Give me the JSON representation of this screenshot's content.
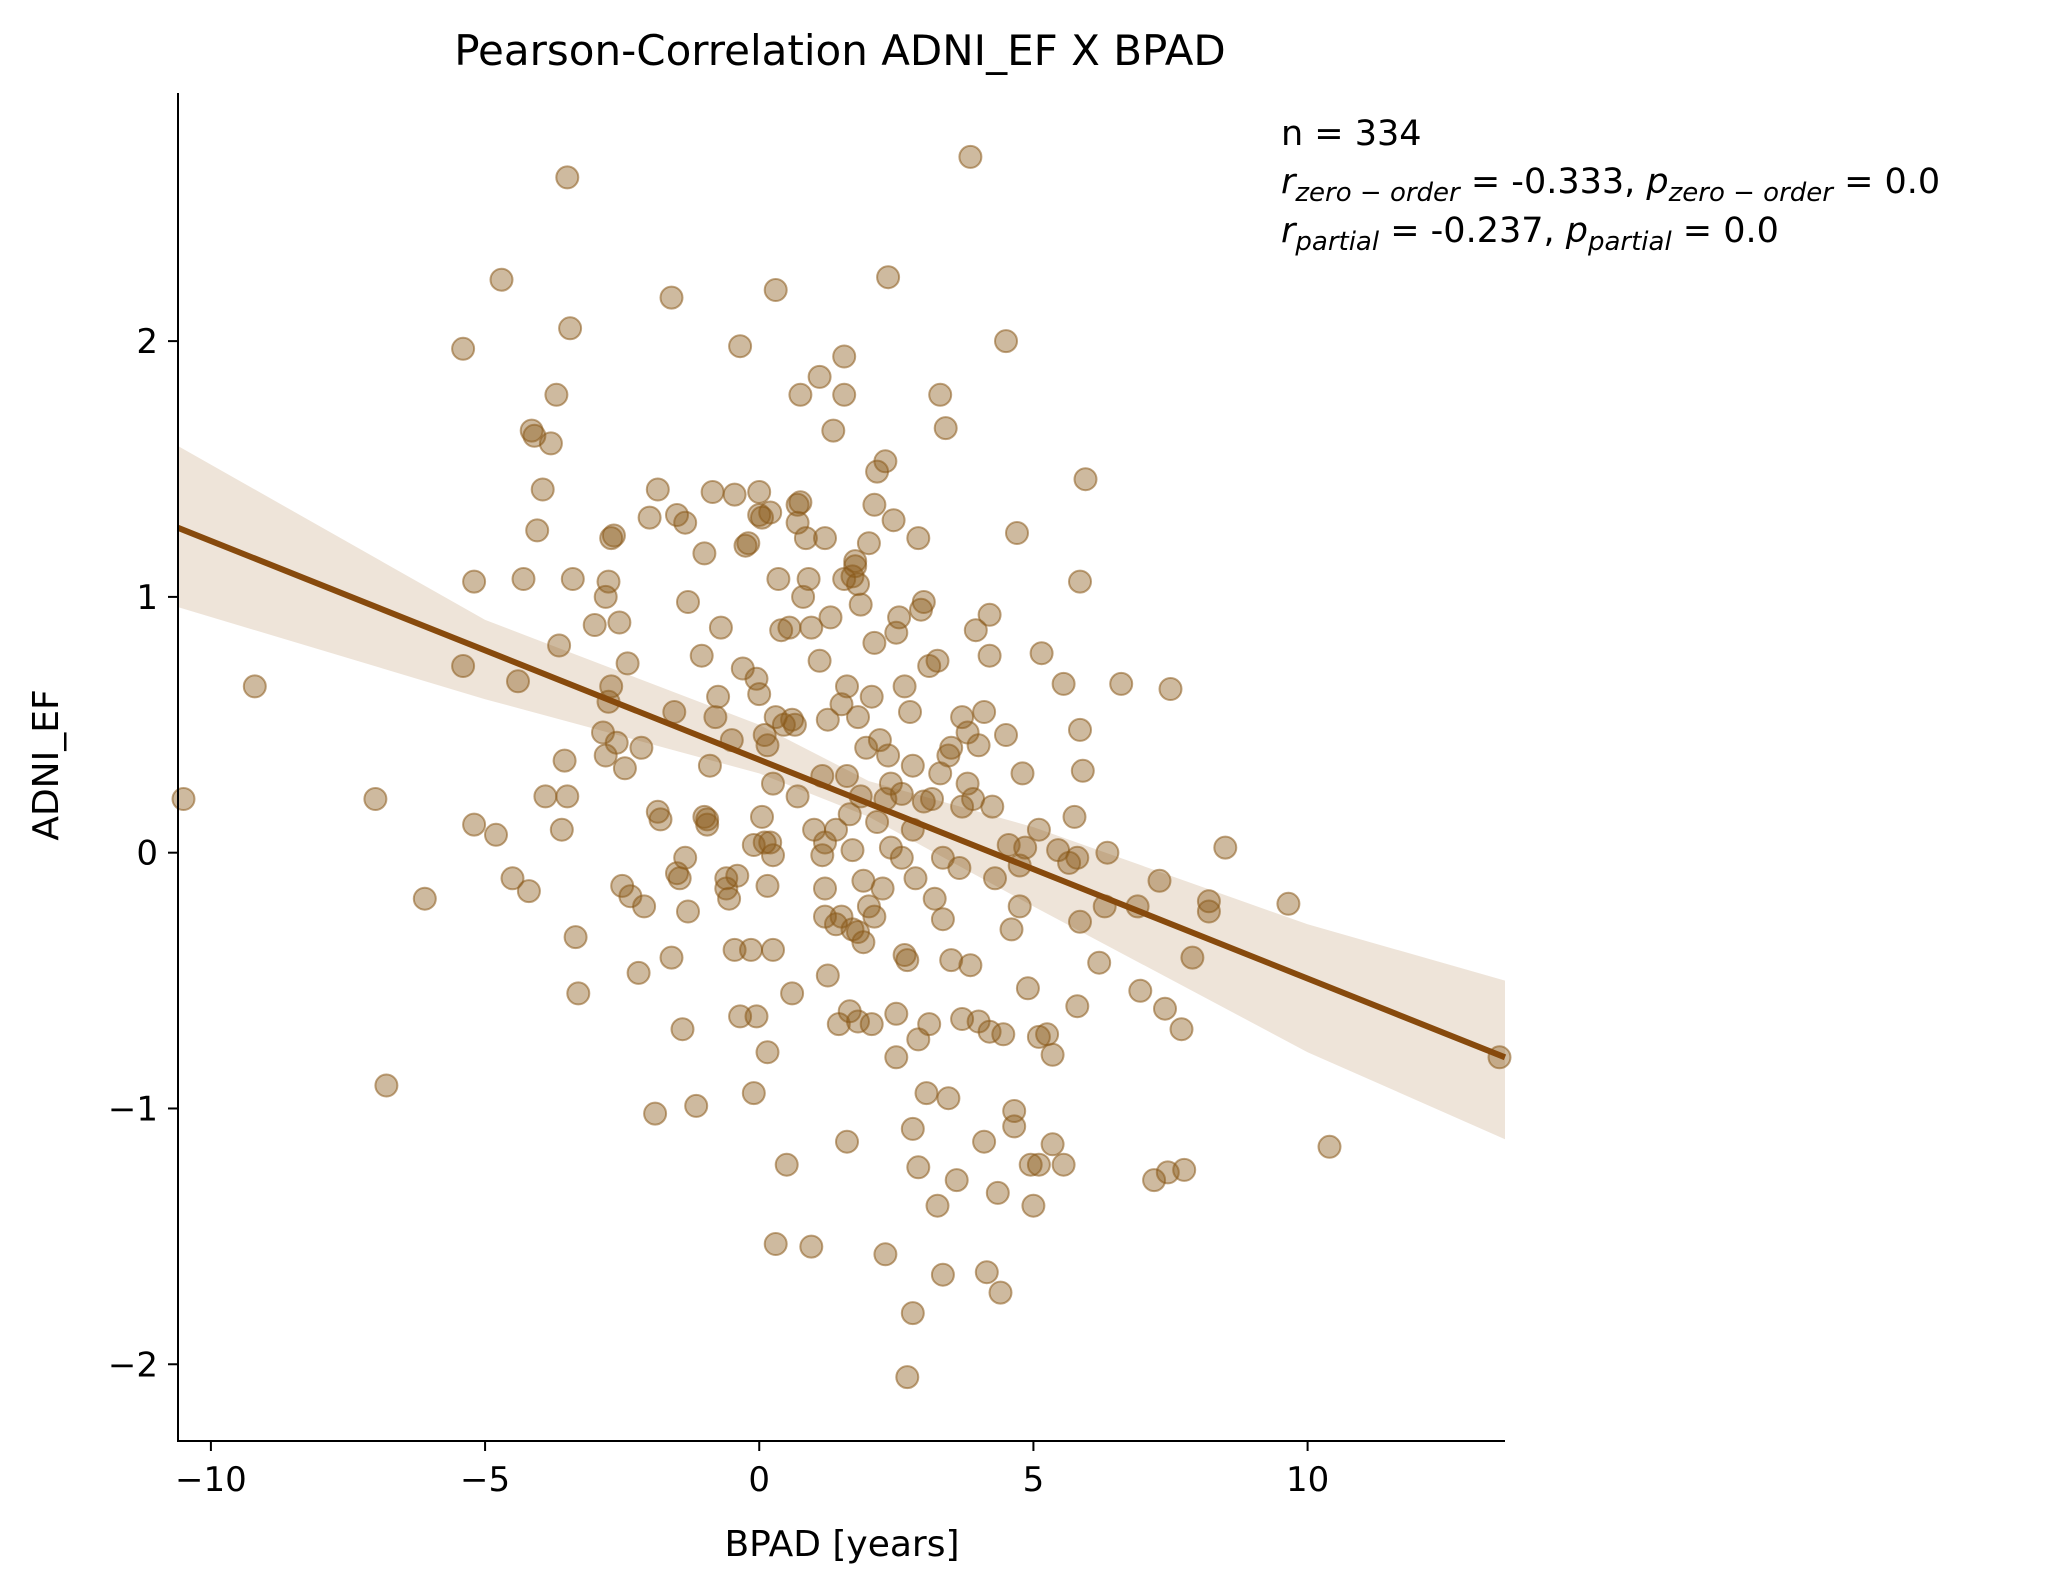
{
  "chart_data": {
    "type": "scatter",
    "title": "Pearson-Correlation ADNI_EF X BPAD",
    "xlabel": "BPAD [years]",
    "ylabel": "ADNI_EF",
    "xlim": [
      -10.6,
      13.6
    ],
    "ylim": [
      -2.3,
      2.97
    ],
    "xticks": [
      -10,
      -5,
      0,
      5,
      10
    ],
    "xtick_labels": [
      "−10",
      "−5",
      "0",
      "5",
      "10"
    ],
    "yticks": [
      -2,
      -1,
      0,
      1,
      2
    ],
    "ytick_labels": [
      "−2",
      "−1",
      "0",
      "1",
      "2"
    ],
    "grid": false,
    "point_color": "#8B5a1a",
    "line_color": "#874a0d",
    "band_color": "#eee4d9",
    "annotation": {
      "n_text": "n = 334",
      "zero_r_symbol": "r",
      "zero_r_sub": "zero − order",
      "zero_r_value": " = -0.333, ",
      "zero_p_symbol": "p",
      "zero_p_sub": "zero − order",
      "zero_p_value": " = 0.0",
      "partial_r_symbol": "r",
      "partial_r_sub": "partial",
      "partial_r_value": " = -0.237, ",
      "partial_p_symbol": "p",
      "partial_p_sub": "partial",
      "partial_p_value": " = 0.0"
    },
    "regression": {
      "x": [
        -10.6,
        13.6
      ],
      "y": [
        1.27,
        -0.8
      ]
    },
    "confidence_band": {
      "x": [
        -10.6,
        -5,
        0,
        2,
        5,
        10,
        13.6
      ],
      "upper": [
        1.59,
        0.91,
        0.5,
        0.28,
        0.1,
        -0.28,
        -0.5
      ],
      "lower": [
        0.96,
        0.6,
        0.31,
        0.14,
        -0.21,
        -0.78,
        -1.12
      ]
    },
    "points": [
      [
        -10.5,
        0.21
      ],
      [
        -9.2,
        0.65
      ],
      [
        -7.0,
        0.21
      ],
      [
        -6.8,
        -0.91
      ],
      [
        -6.1,
        -0.18
      ],
      [
        -5.4,
        1.97
      ],
      [
        -5.4,
        0.73
      ],
      [
        -5.2,
        1.06
      ],
      [
        -5.2,
        0.11
      ],
      [
        -4.8,
        0.07
      ],
      [
        -4.7,
        2.24
      ],
      [
        -4.5,
        -0.1
      ],
      [
        -4.4,
        0.67
      ],
      [
        -4.3,
        1.07
      ],
      [
        -4.2,
        -0.15
      ],
      [
        -4.15,
        1.65
      ],
      [
        -4.1,
        1.63
      ],
      [
        -4.05,
        1.26
      ],
      [
        -3.95,
        1.42
      ],
      [
        -3.9,
        0.22
      ],
      [
        -3.8,
        1.6
      ],
      [
        -3.7,
        1.79
      ],
      [
        -3.65,
        0.81
      ],
      [
        -3.6,
        0.09
      ],
      [
        -3.55,
        0.36
      ],
      [
        -3.5,
        2.64
      ],
      [
        -3.5,
        0.22
      ],
      [
        -3.45,
        2.05
      ],
      [
        -3.4,
        1.07
      ],
      [
        -3.35,
        -0.33
      ],
      [
        -3.3,
        -0.55
      ],
      [
        -3.0,
        0.89
      ],
      [
        -2.85,
        0.47
      ],
      [
        -2.8,
        0.38
      ],
      [
        -2.8,
        1.0
      ],
      [
        -2.75,
        1.06
      ],
      [
        -2.75,
        0.59
      ],
      [
        -2.7,
        0.65
      ],
      [
        -2.7,
        1.23
      ],
      [
        -2.65,
        1.24
      ],
      [
        -2.6,
        0.43
      ],
      [
        -2.55,
        0.9
      ],
      [
        -2.5,
        -0.13
      ],
      [
        -2.45,
        0.33
      ],
      [
        -2.4,
        0.74
      ],
      [
        -2.35,
        -0.17
      ],
      [
        -2.15,
        0.41
      ],
      [
        -2.2,
        -0.47
      ],
      [
        -2.1,
        -0.21
      ],
      [
        -2.0,
        1.31
      ],
      [
        -1.9,
        -1.02
      ],
      [
        -1.85,
        1.42
      ],
      [
        -1.85,
        0.16
      ],
      [
        -1.8,
        0.13
      ],
      [
        -1.6,
        -0.41
      ],
      [
        -1.6,
        2.17
      ],
      [
        -1.55,
        0.55
      ],
      [
        -1.5,
        1.32
      ],
      [
        -1.5,
        -0.08
      ],
      [
        -1.45,
        -0.1
      ],
      [
        -1.4,
        -0.69
      ],
      [
        -1.35,
        1.29
      ],
      [
        -1.3,
        0.98
      ],
      [
        -1.3,
        -0.23
      ],
      [
        -1.35,
        -0.02
      ],
      [
        -1.15,
        -0.99
      ],
      [
        -1.05,
        0.77
      ],
      [
        -1.0,
        1.17
      ],
      [
        -1.0,
        0.14
      ],
      [
        -0.95,
        0.13
      ],
      [
        -0.95,
        0.11
      ],
      [
        -0.9,
        0.34
      ],
      [
        -0.85,
        1.41
      ],
      [
        -0.8,
        0.53
      ],
      [
        -0.75,
        0.61
      ],
      [
        -0.7,
        0.88
      ],
      [
        -0.6,
        -0.1
      ],
      [
        -0.6,
        -0.14
      ],
      [
        -0.55,
        -0.18
      ],
      [
        -0.5,
        0.44
      ],
      [
        -0.45,
        1.4
      ],
      [
        -0.45,
        -0.38
      ],
      [
        -0.4,
        -0.09
      ],
      [
        -0.35,
        1.98
      ],
      [
        -0.35,
        -0.64
      ],
      [
        -0.3,
        0.72
      ],
      [
        -0.25,
        1.2
      ],
      [
        -0.2,
        1.21
      ],
      [
        -0.15,
        -0.38
      ],
      [
        -0.1,
        0.03
      ],
      [
        -0.1,
        -0.94
      ],
      [
        -0.05,
        0.68
      ],
      [
        0.0,
        1.41
      ],
      [
        0.0,
        1.32
      ],
      [
        0.0,
        0.62
      ],
      [
        -0.05,
        -0.64
      ],
      [
        0.05,
        0.14
      ],
      [
        0.05,
        1.31
      ],
      [
        0.1,
        0.46
      ],
      [
        0.1,
        0.04
      ],
      [
        0.15,
        0.42
      ],
      [
        0.15,
        -0.13
      ],
      [
        0.2,
        1.33
      ],
      [
        0.2,
        0.04
      ],
      [
        0.25,
        0.27
      ],
      [
        0.25,
        -0.01
      ],
      [
        0.15,
        -0.78
      ],
      [
        0.25,
        -0.38
      ],
      [
        0.3,
        2.2
      ],
      [
        0.3,
        0.53
      ],
      [
        0.3,
        -1.53
      ],
      [
        0.35,
        1.07
      ],
      [
        0.4,
        0.87
      ],
      [
        0.45,
        0.5
      ],
      [
        0.5,
        -1.22
      ],
      [
        0.55,
        0.88
      ],
      [
        0.6,
        0.52
      ],
      [
        0.6,
        -0.55
      ],
      [
        0.65,
        0.5
      ],
      [
        0.7,
        1.29
      ],
      [
        0.7,
        1.36
      ],
      [
        0.7,
        0.22
      ],
      [
        0.75,
        1.79
      ],
      [
        0.75,
        1.37
      ],
      [
        0.8,
        1.0
      ],
      [
        0.85,
        1.23
      ],
      [
        0.9,
        1.07
      ],
      [
        0.95,
        0.88
      ],
      [
        0.95,
        -1.54
      ],
      [
        1.0,
        0.09
      ],
      [
        1.1,
        1.86
      ],
      [
        1.1,
        0.75
      ],
      [
        1.15,
        0.3
      ],
      [
        1.15,
        -0.01
      ],
      [
        1.2,
        1.23
      ],
      [
        1.2,
        0.04
      ],
      [
        1.2,
        -0.14
      ],
      [
        1.2,
        -0.25
      ],
      [
        1.25,
        0.52
      ],
      [
        1.25,
        -0.48
      ],
      [
        1.3,
        0.92
      ],
      [
        1.35,
        1.65
      ],
      [
        1.4,
        0.09
      ],
      [
        1.4,
        -0.28
      ],
      [
        1.45,
        -0.67
      ],
      [
        1.5,
        -0.25
      ],
      [
        1.5,
        0.58
      ],
      [
        1.55,
        1.79
      ],
      [
        1.55,
        1.94
      ],
      [
        1.55,
        1.07
      ],
      [
        1.6,
        0.65
      ],
      [
        1.6,
        0.3
      ],
      [
        1.6,
        -1.13
      ],
      [
        1.65,
        -0.62
      ],
      [
        1.65,
        0.15
      ],
      [
        1.7,
        1.08
      ],
      [
        1.7,
        0.01
      ],
      [
        1.7,
        -0.3
      ],
      [
        1.75,
        1.12
      ],
      [
        1.75,
        1.14
      ],
      [
        1.8,
        1.05
      ],
      [
        1.8,
        -0.66
      ],
      [
        1.8,
        0.53
      ],
      [
        1.8,
        -0.31
      ],
      [
        1.85,
        0.97
      ],
      [
        1.85,
        0.22
      ],
      [
        1.9,
        -0.35
      ],
      [
        1.9,
        -0.11
      ],
      [
        1.95,
        0.41
      ],
      [
        2.0,
        1.21
      ],
      [
        2.0,
        -0.21
      ],
      [
        2.05,
        0.61
      ],
      [
        2.05,
        -0.67
      ],
      [
        2.1,
        1.36
      ],
      [
        2.1,
        0.82
      ],
      [
        2.1,
        -0.25
      ],
      [
        2.15,
        1.49
      ],
      [
        2.15,
        0.12
      ],
      [
        2.2,
        0.44
      ],
      [
        2.25,
        -0.14
      ],
      [
        2.3,
        1.53
      ],
      [
        2.3,
        0.21
      ],
      [
        2.3,
        -1.57
      ],
      [
        2.35,
        2.25
      ],
      [
        2.35,
        0.38
      ],
      [
        2.4,
        0.27
      ],
      [
        2.4,
        0.02
      ],
      [
        2.45,
        1.3
      ],
      [
        2.5,
        0.86
      ],
      [
        2.5,
        -0.63
      ],
      [
        2.5,
        -0.8
      ],
      [
        2.55,
        0.92
      ],
      [
        2.6,
        0.23
      ],
      [
        2.6,
        -0.02
      ],
      [
        2.65,
        0.65
      ],
      [
        2.65,
        -0.4
      ],
      [
        2.7,
        -2.05
      ],
      [
        2.7,
        -0.42
      ],
      [
        2.75,
        0.55
      ],
      [
        2.8,
        0.34
      ],
      [
        2.8,
        0.09
      ],
      [
        2.8,
        -1.8
      ],
      [
        2.8,
        -1.08
      ],
      [
        2.85,
        -0.1
      ],
      [
        2.9,
        1.23
      ],
      [
        2.9,
        -0.73
      ],
      [
        2.9,
        -1.23
      ],
      [
        2.95,
        0.95
      ],
      [
        3.0,
        0.2
      ],
      [
        3.0,
        0.98
      ],
      [
        3.05,
        -0.94
      ],
      [
        3.1,
        0.73
      ],
      [
        3.1,
        -0.67
      ],
      [
        3.15,
        0.21
      ],
      [
        3.2,
        -0.18
      ],
      [
        3.25,
        0.75
      ],
      [
        3.25,
        -1.38
      ],
      [
        3.3,
        1.79
      ],
      [
        3.3,
        0.31
      ],
      [
        3.35,
        -1.65
      ],
      [
        3.35,
        -0.02
      ],
      [
        3.35,
        -0.26
      ],
      [
        3.4,
        1.66
      ],
      [
        3.45,
        0.38
      ],
      [
        3.45,
        -0.96
      ],
      [
        3.5,
        -0.42
      ],
      [
        3.5,
        0.41
      ],
      [
        3.6,
        -1.28
      ],
      [
        3.65,
        -0.06
      ],
      [
        3.7,
        0.53
      ],
      [
        3.7,
        -0.65
      ],
      [
        3.7,
        0.18
      ],
      [
        3.8,
        0.47
      ],
      [
        3.8,
        0.27
      ],
      [
        3.85,
        2.72
      ],
      [
        3.85,
        -0.44
      ],
      [
        3.9,
        0.21
      ],
      [
        3.95,
        0.87
      ],
      [
        4.0,
        -0.66
      ],
      [
        4.0,
        0.42
      ],
      [
        4.1,
        -1.13
      ],
      [
        4.1,
        0.55
      ],
      [
        4.15,
        -1.64
      ],
      [
        4.2,
        0.93
      ],
      [
        4.2,
        -0.7
      ],
      [
        4.2,
        0.77
      ],
      [
        4.25,
        0.18
      ],
      [
        4.3,
        -0.1
      ],
      [
        4.35,
        -1.33
      ],
      [
        4.4,
        -1.72
      ],
      [
        4.45,
        -0.71
      ],
      [
        4.5,
        0.46
      ],
      [
        4.5,
        2.0
      ],
      [
        4.55,
        0.03
      ],
      [
        4.6,
        -0.3
      ],
      [
        4.65,
        -1.01
      ],
      [
        4.65,
        -1.07
      ],
      [
        4.7,
        1.25
      ],
      [
        4.75,
        -0.21
      ],
      [
        4.75,
        -0.05
      ],
      [
        4.8,
        0.31
      ],
      [
        4.85,
        0.02
      ],
      [
        4.9,
        -0.53
      ],
      [
        4.95,
        -1.22
      ],
      [
        5.0,
        -1.38
      ],
      [
        5.1,
        -0.72
      ],
      [
        5.1,
        0.09
      ],
      [
        5.1,
        -1.22
      ],
      [
        5.15,
        0.78
      ],
      [
        5.25,
        -0.71
      ],
      [
        5.35,
        -1.14
      ],
      [
        5.35,
        -0.79
      ],
      [
        5.45,
        0.01
      ],
      [
        5.55,
        0.66
      ],
      [
        5.55,
        -1.22
      ],
      [
        5.65,
        -0.04
      ],
      [
        5.75,
        0.14
      ],
      [
        5.8,
        -0.6
      ],
      [
        5.8,
        -0.02
      ],
      [
        5.85,
        1.06
      ],
      [
        5.85,
        0.48
      ],
      [
        5.85,
        -0.27
      ],
      [
        5.9,
        0.32
      ],
      [
        5.95,
        1.46
      ],
      [
        6.2,
        -0.43
      ],
      [
        6.3,
        -0.21
      ],
      [
        6.35,
        0.0
      ],
      [
        6.6,
        0.66
      ],
      [
        6.9,
        -0.21
      ],
      [
        6.95,
        -0.54
      ],
      [
        7.2,
        -1.28
      ],
      [
        7.3,
        -0.11
      ],
      [
        7.4,
        -0.61
      ],
      [
        7.45,
        -1.25
      ],
      [
        7.5,
        0.64
      ],
      [
        7.7,
        -0.69
      ],
      [
        7.75,
        -1.24
      ],
      [
        7.9,
        -0.41
      ],
      [
        8.2,
        -0.19
      ],
      [
        8.2,
        -0.23
      ],
      [
        8.5,
        0.02
      ],
      [
        9.65,
        -0.2
      ],
      [
        10.4,
        -1.15
      ],
      [
        13.5,
        -0.8
      ]
    ]
  }
}
